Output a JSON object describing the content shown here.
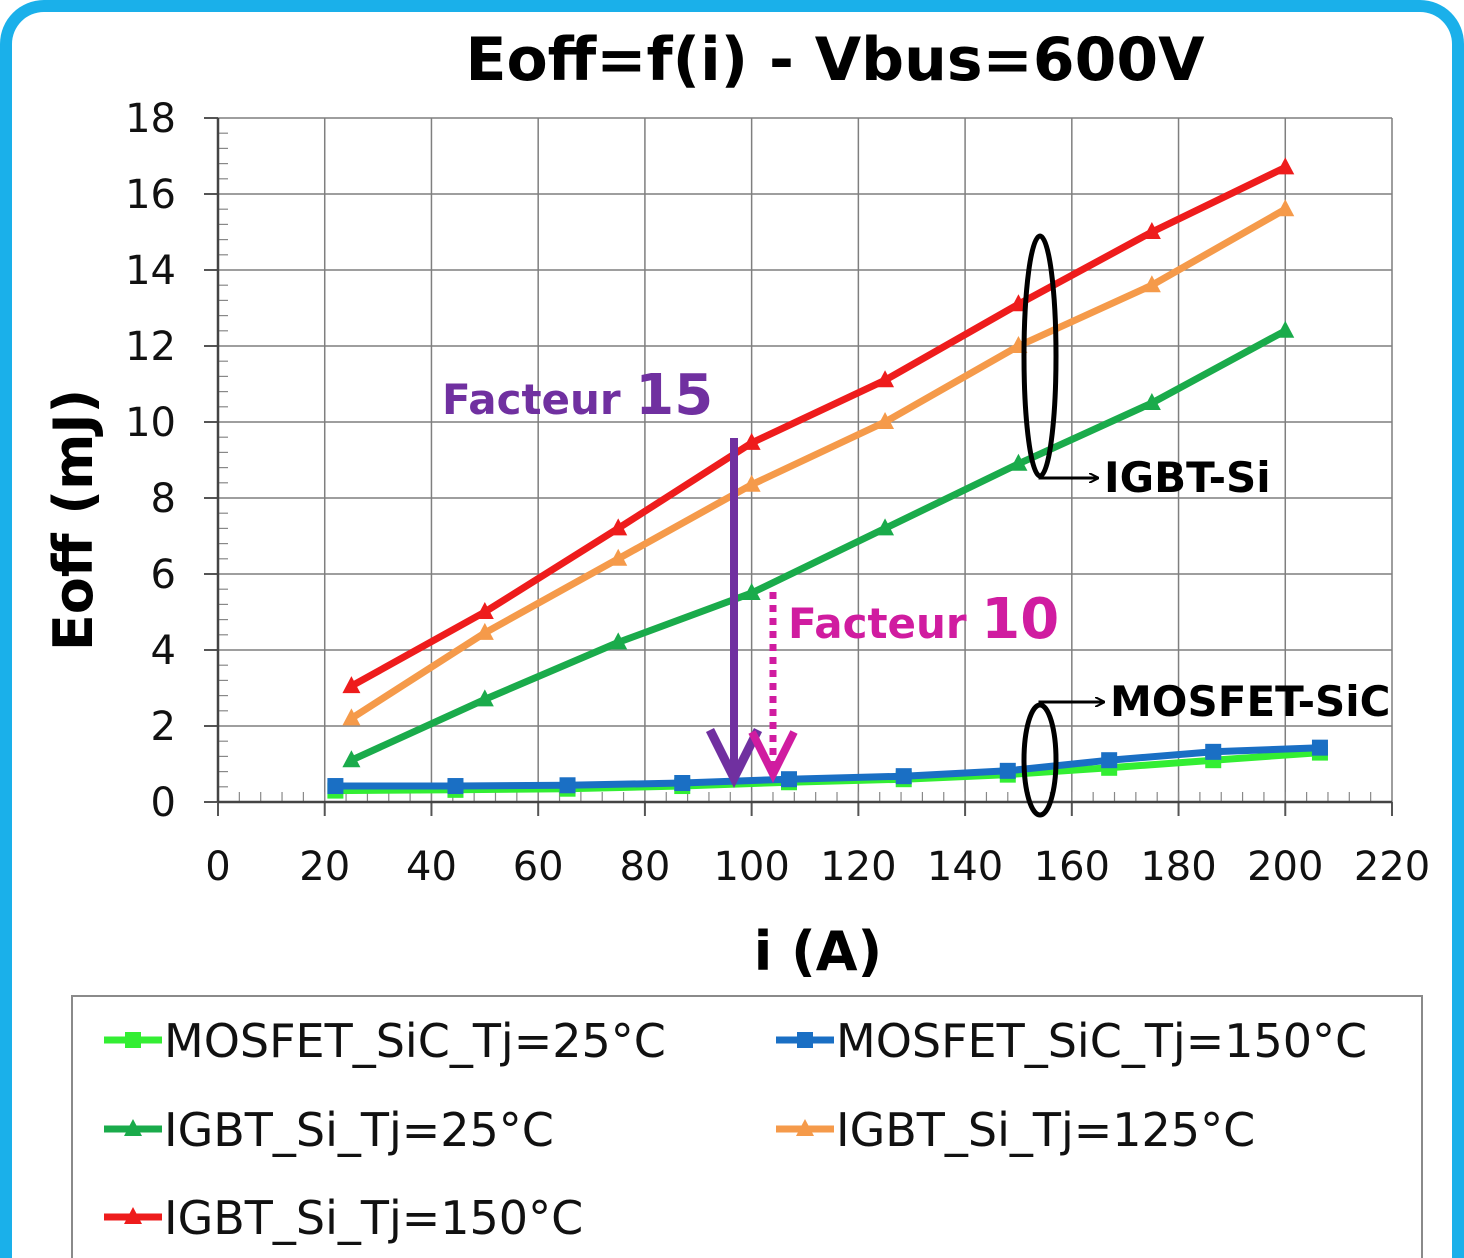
{
  "chart_data": {
    "type": "line",
    "title": "Eoff=f(i) - Vbus=600V",
    "xlabel": "i (A)",
    "ylabel": "Eoff (mJ)",
    "xlim": [
      0,
      220
    ],
    "ylim": [
      0,
      18
    ],
    "x_ticks": [
      "0",
      "20",
      "40",
      "60",
      "80",
      "100",
      "120",
      "140",
      "160",
      "180",
      "200",
      "220"
    ],
    "y_ticks": [
      "0",
      "2",
      "4",
      "6",
      "8",
      "10",
      "12",
      "14",
      "16",
      "18"
    ],
    "grid": true,
    "legend_position": "bottom",
    "series": [
      {
        "name": "MOSFET_SiC_Tj=25°C",
        "color": "#33ee33",
        "marker": "square",
        "points": [
          [
            22,
            0.3
          ],
          [
            44.5,
            0.32
          ],
          [
            65.5,
            0.35
          ],
          [
            87,
            0.42
          ],
          [
            107,
            0.52
          ],
          [
            128.5,
            0.6
          ],
          [
            148,
            0.72
          ],
          [
            167,
            0.9
          ],
          [
            186.5,
            1.1
          ],
          [
            206.5,
            1.3
          ]
        ]
      },
      {
        "name": "MOSFET_SiC_Tj=150°C",
        "color": "#1a6fc4",
        "marker": "square",
        "points": [
          [
            22,
            0.42
          ],
          [
            44.5,
            0.42
          ],
          [
            65.5,
            0.44
          ],
          [
            87,
            0.5
          ],
          [
            107,
            0.6
          ],
          [
            128.5,
            0.68
          ],
          [
            148,
            0.82
          ],
          [
            167,
            1.1
          ],
          [
            186.5,
            1.32
          ],
          [
            206.5,
            1.43
          ]
        ]
      },
      {
        "name": "IGBT_Si_Tj=25°C",
        "color": "#1aab4b",
        "marker": "triangle",
        "points": [
          [
            25,
            1.1
          ],
          [
            50,
            2.7
          ],
          [
            75,
            4.2
          ],
          [
            100,
            5.5
          ],
          [
            125,
            7.2
          ],
          [
            150,
            8.9
          ],
          [
            175,
            10.5
          ],
          [
            200,
            12.4
          ]
        ]
      },
      {
        "name": "IGBT_Si_Tj=125°C",
        "color": "#f59a4a",
        "marker": "triangle",
        "points": [
          [
            25,
            2.2
          ],
          [
            50,
            4.45
          ],
          [
            75,
            6.4
          ],
          [
            100,
            8.35
          ],
          [
            125,
            10.0
          ],
          [
            150,
            12.0
          ],
          [
            175,
            13.6
          ],
          [
            200,
            15.6
          ]
        ]
      },
      {
        "name": "IGBT_Si_Tj=150°C",
        "color": "#ee1c1c",
        "marker": "triangle",
        "points": [
          [
            25,
            3.05
          ],
          [
            50,
            5.0
          ],
          [
            75,
            7.2
          ],
          [
            100,
            9.45
          ],
          [
            125,
            11.1
          ],
          [
            150,
            13.1
          ],
          [
            175,
            15.0
          ],
          [
            200,
            16.7
          ]
        ]
      }
    ],
    "annotations": [
      {
        "id": "facteur15",
        "prefix": "Facteur ",
        "value": "15",
        "color": "#7030a0"
      },
      {
        "id": "facteur10",
        "prefix": "Facteur ",
        "value": "10",
        "color": "#d01ca0"
      },
      {
        "id": "igbt",
        "text": "IGBT-Si",
        "color": "#000000"
      },
      {
        "id": "mosfet",
        "text": "MOSFET-SiC",
        "color": "#000000"
      }
    ]
  }
}
